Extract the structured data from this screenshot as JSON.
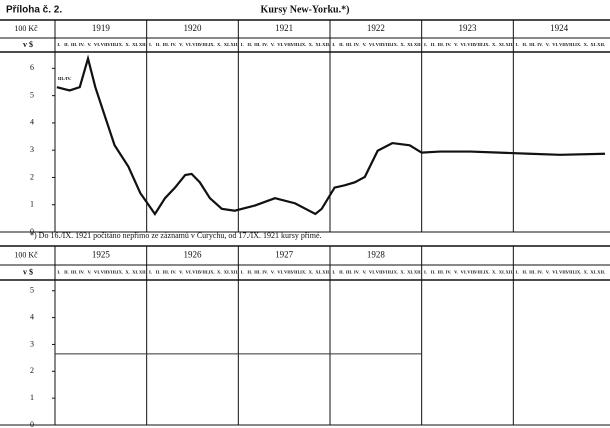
{
  "label": "Příloha č. 2.",
  "footnote": "*) Do 16./IX. 1921 počítáno nepřímo ze záznamů v Curychu, od 17./IX. 1921 kursy přímé.",
  "chart_data": [
    {
      "type": "line",
      "title": "Kursy New-Yorku.*)",
      "unit_label": "100 Kč",
      "currency_label": "v $",
      "years": [
        "1919",
        "1920",
        "1921",
        "1922",
        "1923",
        "1924"
      ],
      "months": [
        "I.",
        "II.",
        "III.",
        "IV.",
        "V.",
        "VI.",
        "VII.",
        "VIII.",
        "IX.",
        "X.",
        "XI.",
        "XII."
      ],
      "annotation": "III./IV.",
      "x": [
        1919.02,
        1919.16,
        1919.27,
        1919.36,
        1919.44,
        1919.55,
        1919.65,
        1919.8,
        1919.93,
        1920.09,
        1920.2,
        1920.31,
        1920.42,
        1920.49,
        1920.58,
        1920.69,
        1920.82,
        1920.96,
        1921.18,
        1921.4,
        1921.62,
        1921.84,
        1921.91,
        1922.05,
        1922.16,
        1922.27,
        1922.38,
        1922.52,
        1922.68,
        1922.87,
        1923.0,
        1923.2,
        1923.53,
        1923.85,
        1924.18,
        1924.51,
        1925.0
      ],
      "values": [
        5.31,
        5.19,
        5.31,
        6.36,
        5.31,
        4.19,
        3.18,
        2.4,
        1.43,
        0.66,
        1.24,
        1.63,
        2.09,
        2.13,
        1.82,
        1.24,
        0.85,
        0.78,
        0.97,
        1.24,
        1.05,
        0.66,
        0.85,
        1.63,
        1.71,
        1.82,
        2.02,
        2.98,
        3.26,
        3.18,
        2.91,
        2.95,
        2.95,
        2.91,
        2.87,
        2.83,
        2.87
      ],
      "color": "#111111",
      "xlim": [
        1919,
        1925
      ],
      "ylim": [
        0,
        6.6
      ],
      "yticks": [
        0,
        1,
        2,
        3,
        4,
        5,
        6
      ]
    },
    {
      "type": "line",
      "unit_label": "100 Kč",
      "currency_label": "v $",
      "years": [
        "1925",
        "1926",
        "1927",
        "1928",
        null,
        null
      ],
      "months": [
        "I.",
        "II.",
        "III.",
        "IV.",
        "V.",
        "VI.",
        "VII.",
        "VIII.",
        "IX.",
        "X.",
        "XI.",
        "XII."
      ],
      "x": [
        1925,
        1929
      ],
      "values": [
        2.65,
        2.65
      ],
      "color": "#333333",
      "xlim": [
        1925,
        1931
      ],
      "ylim": [
        0,
        5.4
      ],
      "yticks": [
        0,
        1,
        2,
        3,
        4,
        5
      ]
    }
  ]
}
